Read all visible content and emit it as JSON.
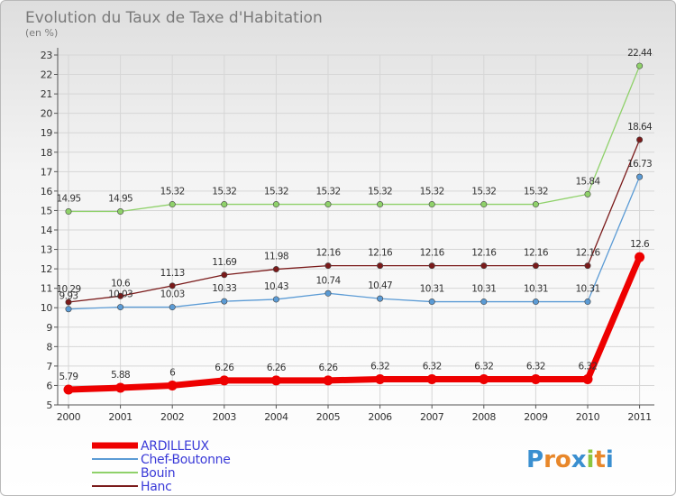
{
  "title": "Evolution du Taux de Taxe d'Habitation",
  "subtitle": "(en %)",
  "logo": {
    "letters": [
      "P",
      "r",
      "o",
      "x",
      "i",
      "t",
      "i"
    ],
    "colors": [
      "#3a8fd0",
      "#e8872a",
      "#e8872a",
      "#3a8fd0",
      "#8cc63f",
      "#e8872a",
      "#3a8fd0"
    ]
  },
  "chart_data": {
    "type": "line",
    "categories": [
      "2000",
      "2001",
      "2002",
      "2003",
      "2004",
      "2005",
      "2006",
      "2007",
      "2008",
      "2009",
      "2010",
      "2011"
    ],
    "ylim": [
      5,
      23
    ],
    "yticks": [
      5,
      6,
      7,
      8,
      9,
      10,
      11,
      12,
      13,
      14,
      15,
      16,
      17,
      18,
      19,
      20,
      21,
      22,
      23
    ],
    "grid": true,
    "legend_position": "bottom-left",
    "series": [
      {
        "name": "ARDILLEUX",
        "color": "#ee0000",
        "values": [
          5.79,
          5.88,
          6,
          6.26,
          6.26,
          6.26,
          6.32,
          6.32,
          6.32,
          6.32,
          6.32,
          12.6
        ],
        "labels": [
          "5.79",
          "5.88",
          "6",
          "6.26",
          "6.26",
          "6.26",
          "6.32",
          "6.32",
          "6.32",
          "6.32",
          "6.32",
          "12.6"
        ],
        "width": 7,
        "marker": 5.5
      },
      {
        "name": "Chef-Boutonne",
        "color": "#5b9bd5",
        "values": [
          9.93,
          10.03,
          10.03,
          10.33,
          10.43,
          10.74,
          10.47,
          10.31,
          10.31,
          10.31,
          10.31,
          16.73
        ],
        "labels": [
          "9.93",
          "10.03",
          "10.03",
          "10.33",
          "10.43",
          "10.74",
          "10.47",
          "10.31",
          "10.31",
          "10.31",
          "10.31",
          "16.73"
        ],
        "width": 1.3,
        "marker": 3.2
      },
      {
        "name": "Bouin",
        "color": "#8fd16a",
        "values": [
          14.95,
          14.95,
          15.32,
          15.32,
          15.32,
          15.32,
          15.32,
          15.32,
          15.32,
          15.32,
          15.84,
          22.44
        ],
        "labels": [
          "14.95",
          "14.95",
          "15.32",
          "15.32",
          "15.32",
          "15.32",
          "15.32",
          "15.32",
          "15.32",
          "15.32",
          "15.84",
          "22.44"
        ],
        "width": 1.3,
        "marker": 3.2
      },
      {
        "name": "Hanc",
        "color": "#7a1a1a",
        "values": [
          10.29,
          10.6,
          11.13,
          11.69,
          11.98,
          12.16,
          12.16,
          12.16,
          12.16,
          12.16,
          12.16,
          18.64
        ],
        "labels": [
          "10.29",
          "10.6",
          "11.13",
          "11.69",
          "11.98",
          "12.16",
          "12.16",
          "12.16",
          "12.16",
          "12.16",
          "12.16",
          "18.64"
        ],
        "width": 1.3,
        "marker": 3.2
      }
    ]
  }
}
